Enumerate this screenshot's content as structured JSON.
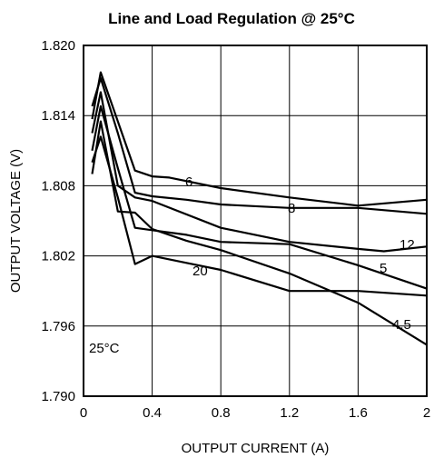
{
  "chart_data": {
    "type": "line",
    "title": "Line and Load Regulation @ 25°C",
    "xlabel": "OUTPUT CURRENT (A)",
    "ylabel": "OUTPUT VOLTAGE (V)",
    "xlim": [
      0,
      2
    ],
    "ylim": [
      1.79,
      1.82
    ],
    "xticks": [
      "0",
      "0.4",
      "0.8",
      "1.2",
      "1.6",
      "2"
    ],
    "yticks": [
      "1.790",
      "1.796",
      "1.802",
      "1.808",
      "1.814",
      "1.820"
    ],
    "grid": true,
    "annotation": "25°C",
    "series": [
      {
        "name": "6",
        "x": [
          0.05,
          0.1,
          0.2,
          0.3,
          0.4,
          0.5,
          0.8,
          1.2,
          1.6,
          2.0
        ],
        "y": [
          1.8137,
          1.8177,
          1.8135,
          1.8093,
          1.8088,
          1.8087,
          1.8078,
          1.807,
          1.8063,
          1.8068
        ]
      },
      {
        "name": "8",
        "x": [
          0.05,
          0.1,
          0.2,
          0.3,
          0.4,
          0.6,
          0.8,
          1.2,
          1.6,
          2.0
        ],
        "y": [
          1.8148,
          1.8172,
          1.8125,
          1.8074,
          1.8071,
          1.8068,
          1.8064,
          1.8061,
          1.8061,
          1.8056
        ]
      },
      {
        "name": "12",
        "x": [
          0.05,
          0.1,
          0.2,
          0.3,
          0.4,
          0.8,
          1.2,
          1.6,
          1.75,
          2.0
        ],
        "y": [
          1.8125,
          1.816,
          1.808,
          1.807,
          1.8067,
          1.8044,
          1.8032,
          1.8026,
          1.8024,
          1.8028
        ]
      },
      {
        "name": "5",
        "x": [
          0.05,
          0.1,
          0.2,
          0.3,
          0.4,
          0.6,
          0.8,
          1.2,
          1.6,
          2.0
        ],
        "y": [
          1.811,
          1.8148,
          1.8095,
          1.8044,
          1.8042,
          1.8038,
          1.8032,
          1.803,
          1.8012,
          1.7992
        ]
      },
      {
        "name": "20",
        "x": [
          0.05,
          0.1,
          0.2,
          0.3,
          0.4,
          0.6,
          0.8,
          1.2,
          1.6,
          2.0
        ],
        "y": [
          1.809,
          1.8135,
          1.8058,
          1.8057,
          1.8043,
          1.8033,
          1.8025,
          1.8005,
          1.798,
          1.7944
        ]
      },
      {
        "name": "4.5",
        "x": [
          0.05,
          0.1,
          0.2,
          0.3,
          0.4,
          0.6,
          0.8,
          1.2,
          1.6,
          2.0
        ],
        "y": [
          1.81,
          1.8122,
          1.807,
          1.8013,
          1.802,
          1.8014,
          1.8008,
          1.799,
          1.799,
          1.7986
        ]
      }
    ]
  }
}
